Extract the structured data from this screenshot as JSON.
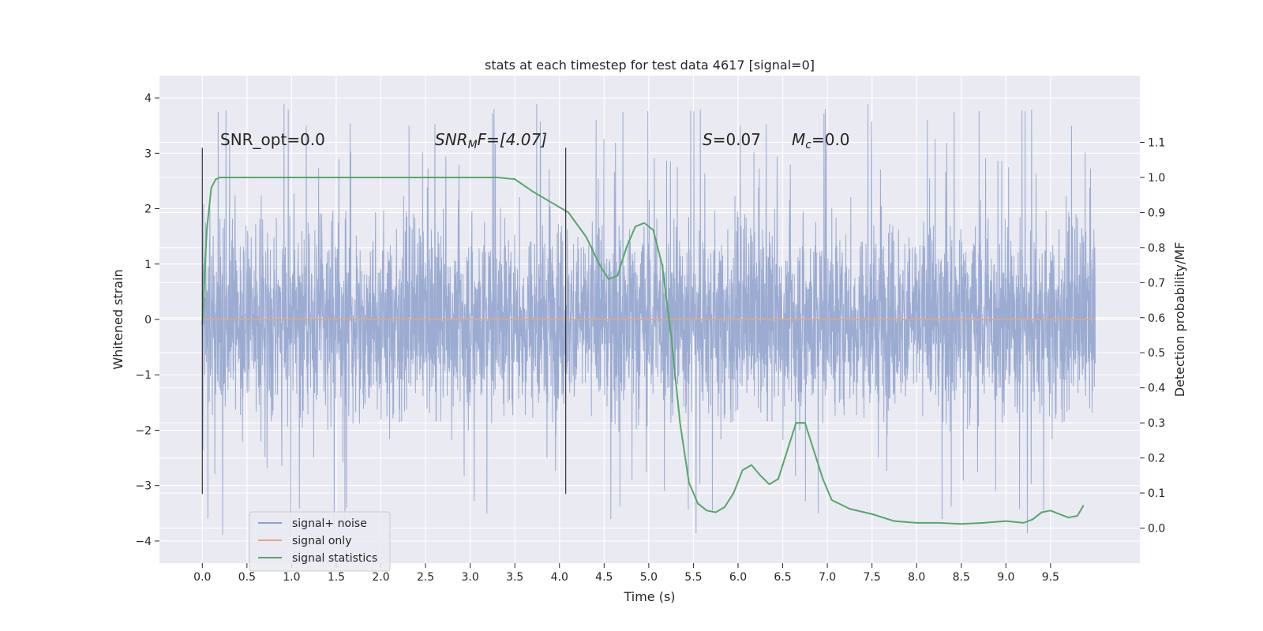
{
  "chart_data": {
    "type": "line",
    "title": "stats at each timestep for test data 4617 [signal=0]",
    "xlabel": "Time (s)",
    "ylabel": "Whitened strain",
    "y2label": "Detection probability/MF",
    "xlim": [
      -0.48,
      10.5
    ],
    "ylim": [
      -4.4,
      4.4
    ],
    "y2lim": [
      -0.1,
      1.29
    ],
    "xticks": [
      "0.0",
      "0.5",
      "1.0",
      "1.5",
      "2.0",
      "2.5",
      "3.0",
      "3.5",
      "4.0",
      "4.5",
      "5.0",
      "5.5",
      "6.0",
      "6.5",
      "7.0",
      "7.5",
      "8.0",
      "8.5",
      "9.0",
      "9.5"
    ],
    "yticks": [
      "−4",
      "−3",
      "−2",
      "−1",
      "0",
      "1",
      "2",
      "3",
      "4"
    ],
    "y2ticks": [
      "0.0",
      "0.1",
      "0.2",
      "0.3",
      "0.4",
      "0.5",
      "0.6",
      "0.7",
      "0.8",
      "0.9",
      "1.0",
      "1.1"
    ],
    "grid": true,
    "legend_position": "lower-left",
    "annotations": {
      "snr_opt": "SNR_opt=0.0",
      "snr_mf_main": "SNR",
      "snr_mf_sub": "M",
      "snr_mf_tail": "F=[4.07]",
      "s_main": "S",
      "s_tail": "=0.07",
      "mc_main": "M",
      "mc_sub": "c",
      "mc_tail": "=0.0"
    },
    "vlines": [
      {
        "x": 0.0,
        "ymin": -3.15,
        "ymax": 3.1
      },
      {
        "x": 4.07,
        "ymin": -3.15,
        "ymax": 3.1
      }
    ],
    "series": [
      {
        "name": "signal+ noise",
        "axis": "left",
        "color": "#8da0cb",
        "x_range": [
          0.0,
          10.0
        ],
        "typical_amplitude": 2.2,
        "peak_amplitude": 4.0,
        "description_values": "dense noise spanning roughly -3.9 to 4.0"
      },
      {
        "name": "signal only",
        "axis": "left",
        "color": "#e8a37f",
        "x": [
          0.0,
          10.0
        ],
        "y": [
          0.0,
          0.0
        ]
      },
      {
        "name": "signal statistics",
        "axis": "right",
        "color": "#55a868",
        "x": [
          0.0,
          0.05,
          0.1,
          0.15,
          0.2,
          0.3,
          0.5,
          1.0,
          1.5,
          2.0,
          2.5,
          3.0,
          3.3,
          3.5,
          3.7,
          3.9,
          4.1,
          4.3,
          4.45,
          4.55,
          4.65,
          4.75,
          4.85,
          4.95,
          5.05,
          5.15,
          5.25,
          5.35,
          5.45,
          5.55,
          5.65,
          5.75,
          5.85,
          5.95,
          6.05,
          6.15,
          6.25,
          6.35,
          6.45,
          6.55,
          6.65,
          6.75,
          6.85,
          6.95,
          7.05,
          7.25,
          7.5,
          7.75,
          8.0,
          8.25,
          8.5,
          8.75,
          9.0,
          9.2,
          9.3,
          9.4,
          9.5,
          9.6,
          9.7,
          9.8,
          9.87
        ],
        "y": [
          0.58,
          0.85,
          0.97,
          0.995,
          1.0,
          1.0,
          1.0,
          1.0,
          1.0,
          1.0,
          1.0,
          1.0,
          1.0,
          0.995,
          0.96,
          0.93,
          0.9,
          0.83,
          0.75,
          0.71,
          0.72,
          0.8,
          0.86,
          0.87,
          0.85,
          0.75,
          0.55,
          0.3,
          0.13,
          0.07,
          0.05,
          0.045,
          0.06,
          0.1,
          0.165,
          0.18,
          0.15,
          0.125,
          0.14,
          0.22,
          0.3,
          0.3,
          0.22,
          0.14,
          0.08,
          0.055,
          0.04,
          0.02,
          0.015,
          0.015,
          0.012,
          0.015,
          0.02,
          0.015,
          0.025,
          0.045,
          0.05,
          0.04,
          0.03,
          0.035,
          0.065
        ]
      }
    ]
  }
}
